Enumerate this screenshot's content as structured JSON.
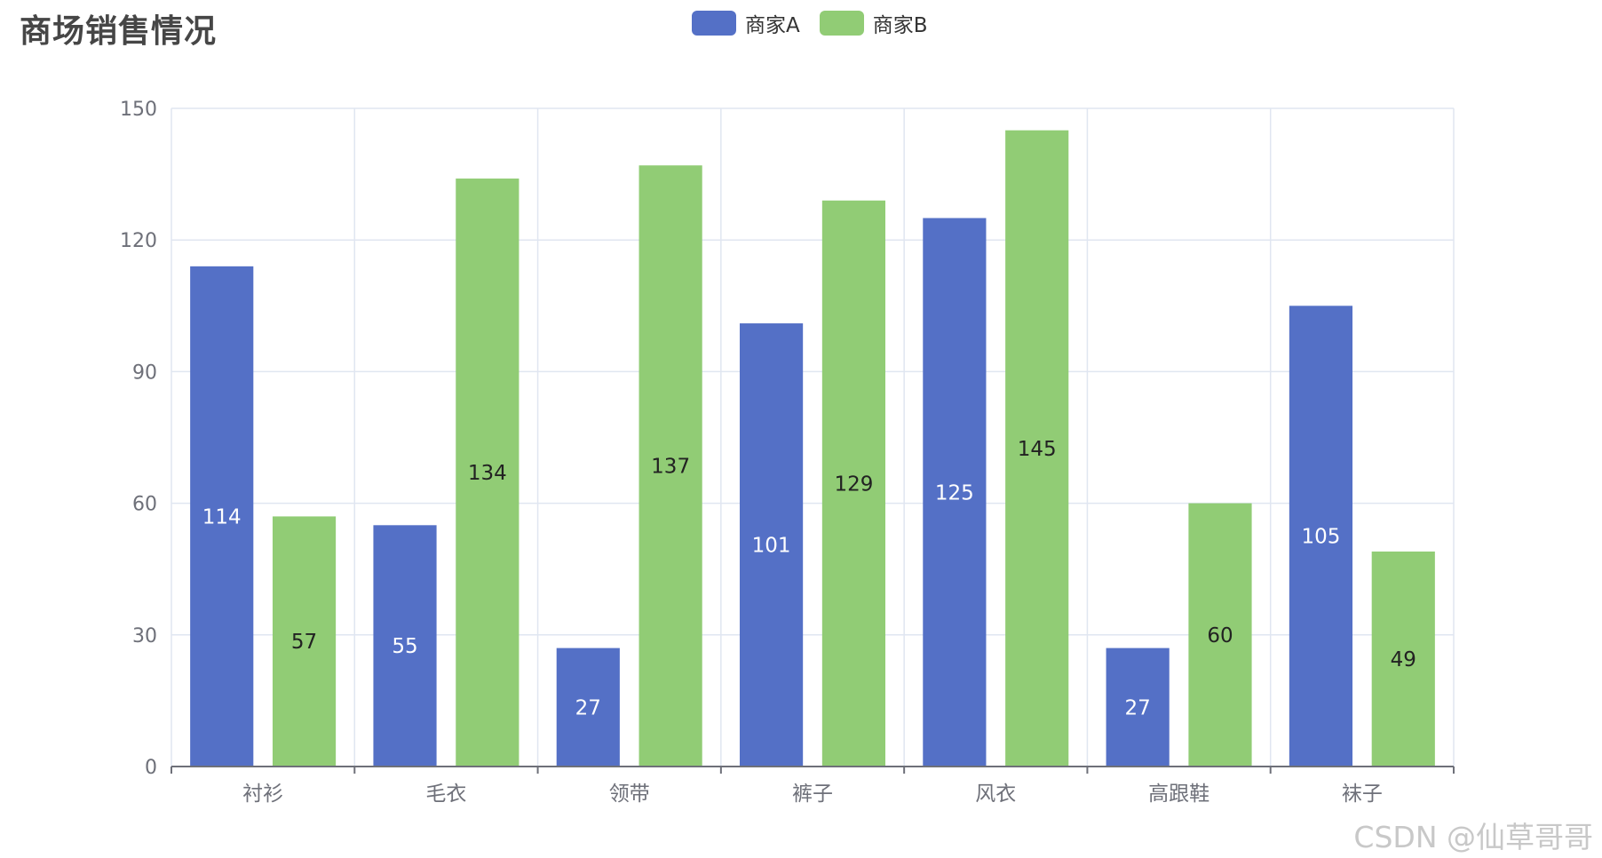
{
  "colors": {
    "series_a": "#5470c6",
    "series_b": "#91cc75",
    "grid": "#e0e6f1",
    "axis": "#6e7079"
  },
  "watermark": "CSDN @仙草哥哥",
  "chart_data": {
    "type": "bar",
    "title": "商场销售情况",
    "categories": [
      "衬衫",
      "毛衣",
      "领带",
      "裤子",
      "风衣",
      "高跟鞋",
      "袜子"
    ],
    "series": [
      {
        "name": "商家A",
        "values": [
          114,
          55,
          27,
          101,
          125,
          27,
          105
        ]
      },
      {
        "name": "商家B",
        "values": [
          57,
          134,
          137,
          129,
          145,
          60,
          49
        ]
      }
    ],
    "ylim": [
      0,
      150
    ],
    "yticks": [
      0,
      30,
      60,
      90,
      120,
      150
    ],
    "xlabel": "",
    "ylabel": "",
    "grid": true,
    "legend": "top-center",
    "data_labels": "inside-center"
  }
}
